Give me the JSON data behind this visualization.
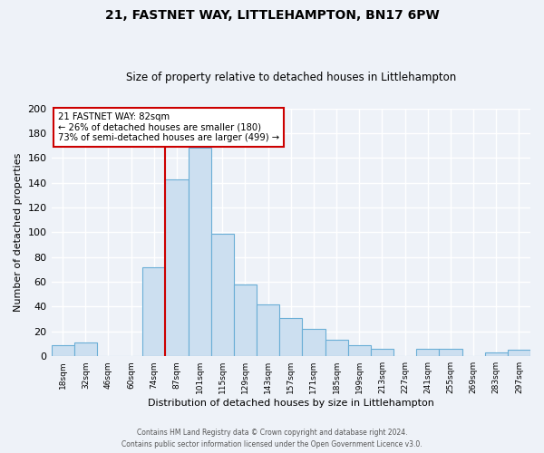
{
  "title1": "21, FASTNET WAY, LITTLEHAMPTON, BN17 6PW",
  "title2": "Size of property relative to detached houses in Littlehampton",
  "xlabel": "Distribution of detached houses by size in Littlehampton",
  "ylabel": "Number of detached properties",
  "bin_labels": [
    "18sqm",
    "32sqm",
    "46sqm",
    "60sqm",
    "74sqm",
    "87sqm",
    "101sqm",
    "115sqm",
    "129sqm",
    "143sqm",
    "157sqm",
    "171sqm",
    "185sqm",
    "199sqm",
    "213sqm",
    "227sqm",
    "241sqm",
    "255sqm",
    "269sqm",
    "283sqm",
    "297sqm"
  ],
  "bar_heights": [
    9,
    11,
    0,
    0,
    72,
    143,
    168,
    99,
    58,
    42,
    31,
    22,
    13,
    9,
    6,
    0,
    6,
    6,
    0,
    3,
    5
  ],
  "bar_color": "#ccdff0",
  "bar_edge_color": "#6aaed6",
  "vline_x": 5,
  "vline_color": "#cc0000",
  "annotation_text": "21 FASTNET WAY: 82sqm\n← 26% of detached houses are smaller (180)\n73% of semi-detached houses are larger (499) →",
  "annotation_box_color": "#ffffff",
  "annotation_box_edge": "#cc0000",
  "ylim": [
    0,
    200
  ],
  "yticks": [
    0,
    20,
    40,
    60,
    80,
    100,
    120,
    140,
    160,
    180,
    200
  ],
  "footer1": "Contains HM Land Registry data © Crown copyright and database right 2024.",
  "footer2": "Contains public sector information licensed under the Open Government Licence v3.0.",
  "bg_color": "#eef2f8",
  "grid_color": "#ffffff",
  "fig_width": 6.0,
  "fig_height": 5.0,
  "fig_dpi": 100
}
